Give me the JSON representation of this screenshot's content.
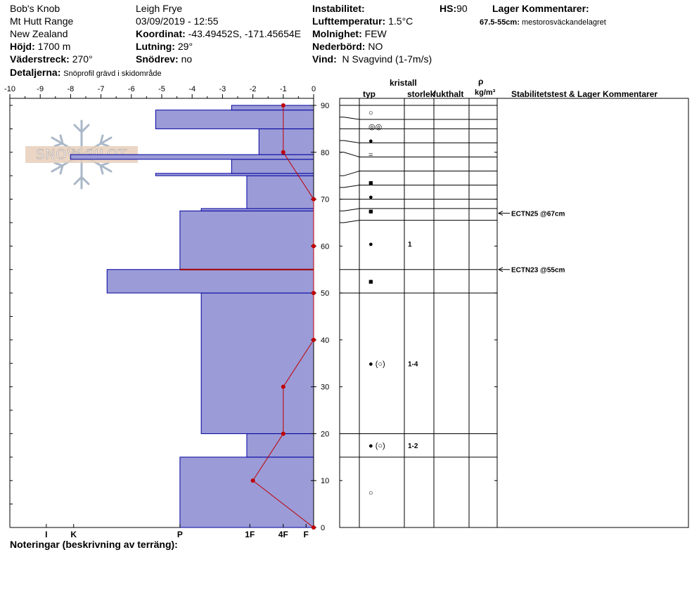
{
  "header": {
    "location": "Bob's Knob",
    "range": "Mt Hutt Range",
    "country": "New Zealand",
    "elevation_label": "Höjd:",
    "elevation_value": "1700 m",
    "aspect_label": "Väderstreck:",
    "aspect_value": "270°",
    "details_label": "Detaljerna:",
    "details_value": "Snöprofil grävd i skidområde",
    "observer": "Leigh Frye",
    "datetime": "03/09/2019 - 12:55",
    "coord_label": "Koordinat:",
    "coord_value": "-43.49452S, -171.45654E",
    "slope_label": "Lutning:",
    "slope_value": "29°",
    "drift_label": "Snödrev:",
    "drift_value": "no",
    "instability_label": "Instabilitet:",
    "airtemp_label": "Lufttemperatur:",
    "airtemp_value": "1.5°C",
    "sky_label": "Molnighet:",
    "sky_value": "FEW",
    "precip_label": "Nederbörd:",
    "precip_value": "NO",
    "wind_label": "Vind:",
    "wind_value": "N Svagvind (1-7m/s)",
    "hs_label": "HS:",
    "hs_value": "90",
    "layer_comments_label": "Lager Kommentarer:",
    "layer_comment_range": "67.5-55cm:",
    "layer_comment_text": "mestorosväckandelagret"
  },
  "logo_text": "SNOW PILOT",
  "notes_label": "Noteringar (beskrivning av terräng):",
  "table_headers": {
    "kristall": "kristall",
    "typ": "typ",
    "storlek": "storlek",
    "fukthalt": "fukthalt",
    "rho": "ρ",
    "density_unit": "kg/m³",
    "stability": "Stabilitetstest & Lager Kommentarer"
  },
  "colors": {
    "hardness_fill": "#9b9bd7",
    "hardness_stroke": "#0000a0",
    "temp_line": "#c00000",
    "critical_layer": "#a00000"
  },
  "chart_data": {
    "type": "snow_profile",
    "temp_axis": {
      "min": -10,
      "max": 0,
      "ticks": [
        -10,
        -9,
        -8,
        -7,
        -6,
        -5,
        -4,
        -3,
        -2,
        -1,
        0
      ]
    },
    "height_axis": {
      "min": 0,
      "max": 90,
      "ticks": [
        0,
        10,
        20,
        30,
        40,
        50,
        60,
        70,
        80,
        90
      ]
    },
    "hardness_axis_labels": [
      {
        "label": "I",
        "temp": -8.8
      },
      {
        "label": "K",
        "temp": -7.9
      },
      {
        "label": "P",
        "temp": -4.4
      },
      {
        "label": "1F",
        "temp": -2.1
      },
      {
        "label": "4F",
        "temp": -1.0
      },
      {
        "label": "F",
        "temp": -0.25
      }
    ],
    "hardness_layers": [
      {
        "bottom": 0,
        "top": 15,
        "temp": -4.4
      },
      {
        "bottom": 15,
        "top": 20,
        "temp": -2.2
      },
      {
        "bottom": 20,
        "top": 50,
        "temp": -3.7
      },
      {
        "bottom": 50,
        "top": 55,
        "temp": -6.8
      },
      {
        "bottom": 55,
        "top": 67.5,
        "temp": -4.4
      },
      {
        "bottom": 67.5,
        "top": 68,
        "temp": -3.7
      },
      {
        "bottom": 68,
        "top": 75,
        "temp": -2.2
      },
      {
        "bottom": 75,
        "top": 75.5,
        "temp": -5.2
      },
      {
        "bottom": 75.5,
        "top": 78.5,
        "temp": -2.7
      },
      {
        "bottom": 78.5,
        "top": 79.5,
        "temp": -8.0
      },
      {
        "bottom": 79.5,
        "top": 85,
        "temp": -1.8
      },
      {
        "bottom": 85,
        "top": 89,
        "temp": -5.2
      },
      {
        "bottom": 89,
        "top": 90,
        "temp": -2.7
      }
    ],
    "critical_layer_height": 55,
    "temperature_profile": [
      {
        "height": 0,
        "temp": 0
      },
      {
        "height": 10,
        "temp": -2
      },
      {
        "height": 20,
        "temp": -1
      },
      {
        "height": 30,
        "temp": -1
      },
      {
        "height": 40,
        "temp": 0
      },
      {
        "height": 50,
        "temp": 0
      },
      {
        "height": 60,
        "temp": 0
      },
      {
        "height": 70,
        "temp": 0
      },
      {
        "height": 80,
        "temp": -1
      },
      {
        "height": 90,
        "temp": -1
      }
    ],
    "layer_boundaries": [
      90,
      87,
      85,
      82,
      79,
      76,
      73,
      70,
      68,
      65.5,
      55,
      50,
      20,
      15,
      0
    ],
    "crystal_rows": [
      {
        "height": 88.5,
        "symbol": "○",
        "size": ""
      },
      {
        "height": 85.5,
        "symbol": "◎◎",
        "size": ""
      },
      {
        "height": 82.5,
        "symbol": "●",
        "size": ""
      },
      {
        "height": 79.5,
        "symbol": "=",
        "size": ""
      },
      {
        "height": 73.5,
        "symbol": "■",
        "size": ""
      },
      {
        "height": 70.5,
        "symbol": "●",
        "size": ""
      },
      {
        "height": 67.5,
        "symbol": "■",
        "size": ""
      },
      {
        "height": 60.5,
        "symbol": "●",
        "size": "1"
      },
      {
        "height": 52.5,
        "symbol": "■",
        "size": ""
      },
      {
        "height": 35,
        "symbol": "● (○)",
        "size": "1-4"
      },
      {
        "height": 17.5,
        "symbol": "● (○)",
        "size": "1-2"
      },
      {
        "height": 7.5,
        "symbol": "○",
        "size": ""
      }
    ],
    "stability_tests": [
      {
        "height": 67,
        "label": "ECTN25 @67cm"
      },
      {
        "height": 55,
        "label": "ECTN23 @55cm"
      }
    ]
  }
}
